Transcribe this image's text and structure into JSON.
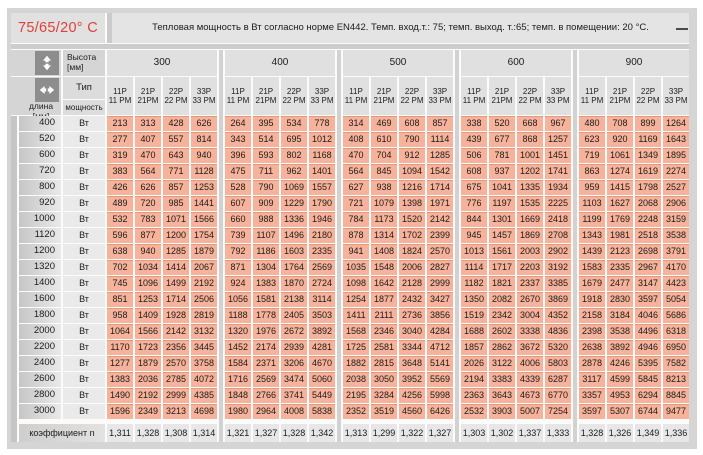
{
  "header": {
    "temp_label": "75/65/20° C",
    "note": "Тепловая мощность в Вт согласно норме EN442. Темп. вход.т.: 75; темп. выход. т.:65; темп. в помещении: 20 °С."
  },
  "table": {
    "height_label": "Высота",
    "height_unit": "[мм]",
    "length_label": "длина",
    "length_unit": "[мм]",
    "type_label": "Тип",
    "power_label": "мощность",
    "watt_label": "Вт",
    "coefficient_label": "коэффициент n",
    "heights": [
      "300",
      "400",
      "500",
      "600",
      "900"
    ],
    "types": [
      [
        "11P",
        "11 PM"
      ],
      [
        "21P",
        "21PM"
      ],
      [
        "22P",
        "22 PM"
      ],
      [
        "33P",
        "33 PM"
      ]
    ],
    "rows": [
      {
        "length": "400",
        "values": [
          213,
          313,
          428,
          626,
          264,
          395,
          534,
          778,
          314,
          469,
          608,
          857,
          338,
          520,
          668,
          967,
          480,
          708,
          899,
          1264
        ]
      },
      {
        "length": "520",
        "values": [
          277,
          407,
          557,
          814,
          343,
          514,
          695,
          1012,
          408,
          610,
          790,
          1114,
          439,
          677,
          868,
          1257,
          623,
          920,
          1169,
          1643
        ]
      },
      {
        "length": "600",
        "values": [
          319,
          470,
          643,
          940,
          396,
          593,
          802,
          1168,
          470,
          704,
          912,
          1285,
          506,
          781,
          1001,
          1451,
          719,
          1061,
          1349,
          1895
        ]
      },
      {
        "length": "720",
        "values": [
          383,
          564,
          771,
          1128,
          475,
          711,
          962,
          1401,
          564,
          845,
          1094,
          1542,
          608,
          937,
          1202,
          1741,
          863,
          1274,
          1619,
          2274
        ]
      },
      {
        "length": "800",
        "values": [
          426,
          626,
          857,
          1253,
          528,
          790,
          1069,
          1557,
          627,
          938,
          1216,
          1714,
          675,
          1041,
          1335,
          1934,
          959,
          1415,
          1798,
          2527
        ]
      },
      {
        "length": "920",
        "values": [
          489,
          720,
          985,
          1441,
          607,
          909,
          1229,
          1790,
          721,
          1079,
          1398,
          1971,
          776,
          1197,
          1535,
          2225,
          1103,
          1627,
          2068,
          2906
        ]
      },
      {
        "length": "1000",
        "values": [
          532,
          783,
          1071,
          1566,
          660,
          988,
          1336,
          1946,
          784,
          1173,
          1520,
          2142,
          844,
          1301,
          1669,
          2418,
          1199,
          1769,
          2248,
          3159
        ]
      },
      {
        "length": "1120",
        "values": [
          596,
          877,
          1200,
          1754,
          739,
          1107,
          1496,
          2180,
          878,
          1314,
          1702,
          2399,
          945,
          1457,
          1869,
          2708,
          1343,
          1981,
          2518,
          3538
        ]
      },
      {
        "length": "1200",
        "values": [
          638,
          940,
          1285,
          1879,
          792,
          1186,
          1603,
          2335,
          941,
          1408,
          1824,
          2570,
          1013,
          1561,
          2003,
          2902,
          1439,
          2123,
          2698,
          3791
        ]
      },
      {
        "length": "1320",
        "values": [
          702,
          1034,
          1414,
          2067,
          871,
          1304,
          1764,
          2569,
          1035,
          1548,
          2006,
          2827,
          1114,
          1717,
          2203,
          3192,
          1583,
          2335,
          2967,
          4170
        ]
      },
      {
        "length": "1400",
        "values": [
          745,
          1096,
          1499,
          2192,
          924,
          1383,
          1870,
          2724,
          1098,
          1642,
          2128,
          2999,
          1182,
          1821,
          2337,
          3385,
          1679,
          2477,
          3147,
          4423
        ]
      },
      {
        "length": "1600",
        "values": [
          851,
          1253,
          1714,
          2506,
          1056,
          1581,
          2138,
          3114,
          1254,
          1877,
          2432,
          3427,
          1350,
          2082,
          2670,
          3869,
          1918,
          2830,
          3597,
          5054
        ]
      },
      {
        "length": "1800",
        "values": [
          958,
          1409,
          1928,
          2819,
          1188,
          1778,
          2405,
          3503,
          1411,
          2111,
          2736,
          3856,
          1519,
          2342,
          3004,
          4352,
          2158,
          3184,
          4046,
          5686
        ]
      },
      {
        "length": "2000",
        "values": [
          1064,
          1566,
          2142,
          3132,
          1320,
          1976,
          2672,
          3892,
          1568,
          2346,
          3040,
          4284,
          1688,
          2602,
          3338,
          4836,
          2398,
          3538,
          4496,
          6318
        ]
      },
      {
        "length": "2200",
        "values": [
          1170,
          1723,
          2356,
          3445,
          1452,
          2174,
          2939,
          4281,
          1725,
          2581,
          3344,
          4712,
          1857,
          2862,
          3672,
          5320,
          2638,
          3892,
          4946,
          6950
        ]
      },
      {
        "length": "2400",
        "values": [
          1277,
          1879,
          2570,
          3758,
          1584,
          2371,
          3206,
          4670,
          1882,
          2815,
          3648,
          5141,
          2026,
          3122,
          4006,
          5803,
          2878,
          4246,
          5395,
          7582
        ]
      },
      {
        "length": "2600",
        "values": [
          1383,
          2036,
          2785,
          4072,
          1716,
          2569,
          3474,
          5060,
          2038,
          3050,
          3952,
          5569,
          2194,
          3383,
          4339,
          6287,
          3117,
          4599,
          5845,
          8213
        ]
      },
      {
        "length": "2800",
        "values": [
          1490,
          2192,
          2999,
          4385,
          1848,
          2766,
          3741,
          5449,
          2195,
          3284,
          4256,
          5998,
          2363,
          3643,
          4673,
          6770,
          3357,
          4953,
          6294,
          8845
        ]
      },
      {
        "length": "3000",
        "values": [
          1596,
          2349,
          3213,
          4698,
          1980,
          2964,
          4008,
          5838,
          2352,
          3519,
          4560,
          6426,
          2532,
          3903,
          5007,
          7254,
          3597,
          5307,
          6744,
          9477
        ]
      }
    ],
    "coefficients": [
      "1,311",
      "1,328",
      "1,308",
      "1,314",
      "1,321",
      "1,327",
      "1,328",
      "1,342",
      "1,313",
      "1,299",
      "1,322",
      "1,327",
      "1,303",
      "1,302",
      "1,337",
      "1,333",
      "1,328",
      "1,326",
      "1,349",
      "1,336"
    ]
  },
  "colors": {
    "accent_red": "#e0403a",
    "cell_salmon": "#f6b29a",
    "panel_gray": "#d5d5d5"
  }
}
